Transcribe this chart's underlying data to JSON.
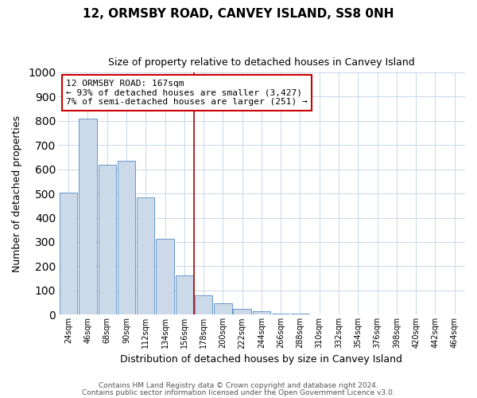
{
  "title": "12, ORMSBY ROAD, CANVEY ISLAND, SS8 0NH",
  "subtitle": "Size of property relative to detached houses in Canvey Island",
  "xlabel": "Distribution of detached houses by size in Canvey Island",
  "ylabel": "Number of detached properties",
  "bin_labels": [
    "24sqm",
    "46sqm",
    "68sqm",
    "90sqm",
    "112sqm",
    "134sqm",
    "156sqm",
    "178sqm",
    "200sqm",
    "222sqm",
    "244sqm",
    "266sqm",
    "288sqm",
    "310sqm",
    "332sqm",
    "354sqm",
    "376sqm",
    "398sqm",
    "420sqm",
    "442sqm",
    "464sqm"
  ],
  "bar_heights": [
    505,
    810,
    620,
    635,
    483,
    312,
    162,
    80,
    47,
    25,
    14,
    5,
    3,
    1,
    0,
    0,
    0,
    0,
    0,
    0,
    0
  ],
  "bar_color": "#ccd9e8",
  "bar_edge_color": "#6699cc",
  "vline_index": 7,
  "annotation_line1": "12 ORMSBY ROAD: 167sqm",
  "annotation_line2": "← 93% of detached houses are smaller (3,427)",
  "annotation_line3": "7% of semi-detached houses are larger (251) →",
  "annotation_box_color": "#ffffff",
  "annotation_box_edge": "#cc0000",
  "vline_color": "#aa0000",
  "ylim": [
    0,
    1000
  ],
  "ytick_step": 100,
  "footer1": "Contains HM Land Registry data © Crown copyright and database right 2024.",
  "footer2": "Contains public sector information licensed under the Open Government Licence v3.0.",
  "background_color": "#ffffff",
  "grid_color": "#c8d8e8"
}
